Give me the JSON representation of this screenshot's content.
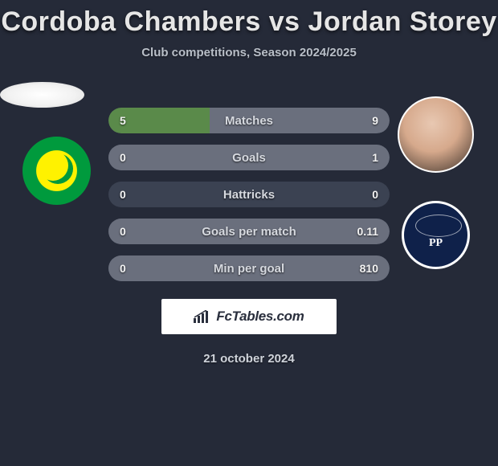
{
  "background_color": "#252a38",
  "title": {
    "player1": "Cordoba Chambers",
    "vs": "vs",
    "player2": "Jordan Storey",
    "fontsize": 34,
    "color": "#e6e6e6"
  },
  "subtitle": {
    "text": "Club competitions, Season 2024/2025",
    "fontsize": 15,
    "color": "#b9bfc8"
  },
  "player1_club_colors": {
    "primary": "#009a3d",
    "secondary": "#fff200"
  },
  "player2_club_colors": {
    "primary": "#0f214a",
    "secondary": "#ffffff"
  },
  "bars": {
    "track_color": "#3b4252",
    "left_fill_color": "#5a8a4a",
    "right_fill_color": "#6a6f7d",
    "label_color": "#d6d9df",
    "value_color": "#f3f3f3",
    "height": 32,
    "radius": 16,
    "fontsize_label": 15,
    "fontsize_value": 14,
    "items": [
      {
        "label": "Matches",
        "left": "5",
        "right": "9",
        "left_pct": 36,
        "right_pct": 64
      },
      {
        "label": "Goals",
        "left": "0",
        "right": "1",
        "left_pct": 0,
        "right_pct": 100
      },
      {
        "label": "Hattricks",
        "left": "0",
        "right": "0",
        "left_pct": 0,
        "right_pct": 0
      },
      {
        "label": "Goals per match",
        "left": "0",
        "right": "0.11",
        "left_pct": 0,
        "right_pct": 100
      },
      {
        "label": "Min per goal",
        "left": "0",
        "right": "810",
        "left_pct": 0,
        "right_pct": 100
      }
    ]
  },
  "brand": {
    "text": "FcTables.com",
    "box_bg": "#ffffff",
    "text_color": "#2a2f3d",
    "icon_color": "#2a2f3d"
  },
  "date": {
    "text": "21 october 2024",
    "color": "#cfd3da",
    "fontsize": 15
  }
}
